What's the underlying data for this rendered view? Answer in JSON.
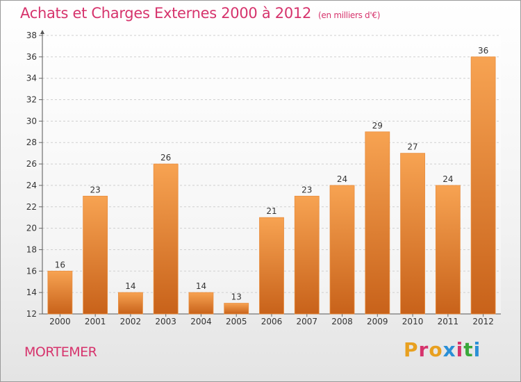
{
  "header": {
    "title": "Achats et Charges Externes 2000 à 2012",
    "subtitle": "(en milliers d'€)"
  },
  "footer": {
    "town": "MORTEMER",
    "logo_text": "Proxiti",
    "logo_colors": [
      "#e8a020",
      "#d6336c",
      "#e8a020",
      "#2a8fd6",
      "#d6336c",
      "#3aa83a",
      "#2a8fd6"
    ]
  },
  "colors": {
    "bar_top": "#f7a352",
    "bar_bottom": "#c8621a",
    "accent": "#d6336c"
  },
  "chart_data": {
    "type": "bar",
    "categories": [
      "2000",
      "2001",
      "2002",
      "2003",
      "2004",
      "2005",
      "2006",
      "2007",
      "2008",
      "2009",
      "2010",
      "2011",
      "2012"
    ],
    "values": [
      16,
      23,
      14,
      26,
      14,
      13,
      21,
      23,
      24,
      29,
      27,
      24,
      36
    ],
    "ylim": [
      12,
      38
    ],
    "yticks": [
      12,
      14,
      16,
      18,
      20,
      22,
      24,
      26,
      28,
      30,
      32,
      34,
      36,
      38
    ],
    "grid": true,
    "legend": "none"
  }
}
